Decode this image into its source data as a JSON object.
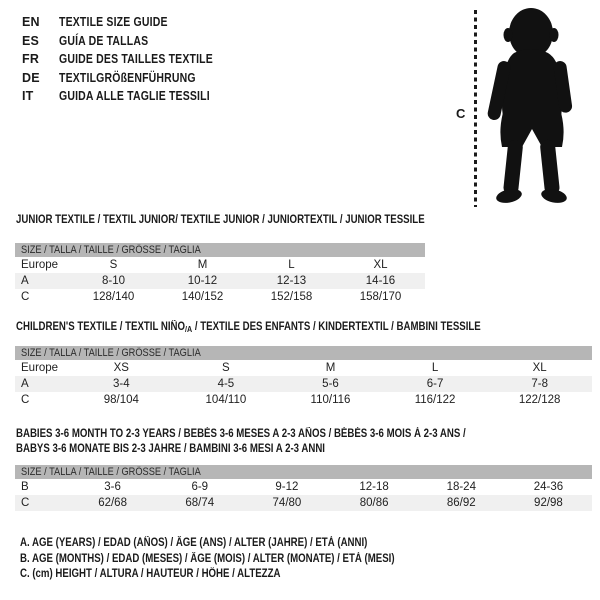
{
  "languages": [
    {
      "code": "EN",
      "label": "TEXTILE SIZE GUIDE"
    },
    {
      "code": "ES",
      "label": "GUÍA DE TALLAS"
    },
    {
      "code": "FR",
      "label": "GUIDE DES TAILLES TEXTILE"
    },
    {
      "code": "DE",
      "label": "TEXTILGRÖßENFÜHRUNG"
    },
    {
      "code": "IT",
      "label": "GUIDA ALLE TAGLIE TESSILI"
    }
  ],
  "figure": {
    "measure_label": "C"
  },
  "tables": [
    {
      "title": "JUNIOR TEXTILE / TEXTIL JUNIOR/ TEXTILE JUNIOR / JUNIORTEXTIL / JUNIOR TESSILE",
      "header": "SIZE / TALLA / TAILLE / GRÖSSE / TAGLIA",
      "rows": [
        [
          "Europe",
          "S",
          "M",
          "L",
          "XL"
        ],
        [
          "A",
          "8-10",
          "10-12",
          "12-13",
          "14-16"
        ],
        [
          "C",
          "128/140",
          "140/152",
          "152/158",
          "158/170"
        ]
      ]
    },
    {
      "title_pre": "CHILDREN'S TEXTILE / TEXTIL NIÑO",
      "title_sub": "/A",
      "title_post": " / TEXTILE DES ENFANTS / KINDERTEXTIL / BAMBINI TESSILE",
      "header": "SIZE / TALLA / TAILLE / GRÖSSE / TAGLIA",
      "rows": [
        [
          "Europe",
          "XS",
          "S",
          "M",
          "L",
          "XL"
        ],
        [
          "A",
          "3-4",
          "4-5",
          "5-6",
          "6-7",
          "7-8"
        ],
        [
          "C",
          "98/104",
          "104/110",
          "110/116",
          "116/122",
          "122/128"
        ]
      ]
    },
    {
      "title_lines": [
        "BABIES 3-6 MONTH TO 2-3 YEARS / BEBÉS 3-6 MESES A 2-3 AÑOS / BÉBÉS 3-6 MOIS À 2-3 ANS /",
        "BABYS 3-6 MONATE BIS 2-3 JAHRE / BAMBINI 3-6 MESI A 2-3 ANNI"
      ],
      "header": "SIZE / TALLA / TAILLE / GRÖSSE / TAGLIA",
      "rows": [
        [
          "B",
          "3-6",
          "6-9",
          "9-12",
          "12-18",
          "18-24",
          "24-36"
        ],
        [
          "C",
          "62/68",
          "68/74",
          "74/80",
          "80/86",
          "86/92",
          "92/98"
        ]
      ]
    }
  ],
  "footnotes": [
    "A. AGE (YEARS) / EDAD (AÑOS) / ÂGE (ANS) / ALTER (JAHRE) / ETÀ (ANNI)",
    "B. AGE (MONTHS) / EDAD (MESES) / ÂGE (MOIS) / ALTER (MONATE) / ETÀ (MESI)",
    "C. (cm) HEIGHT / ALTURA / HAUTEUR / HÖHE / ALTEZZA"
  ],
  "colors": {
    "table_header_bg": "#b6b6b6",
    "row_alt_bg": "#f0f0f0",
    "text": "#1a1a1a"
  }
}
